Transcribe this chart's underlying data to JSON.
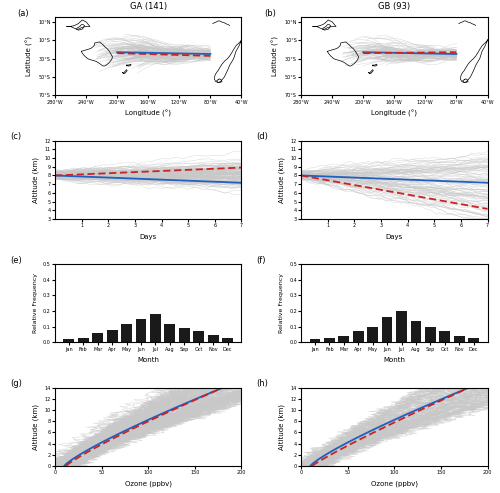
{
  "title_a": "GA (141)",
  "title_b": "GB (93)",
  "panel_labels": [
    "(a)",
    "(b)",
    "(c)",
    "(d)",
    "(e)",
    "(f)",
    "(g)",
    "(h)"
  ],
  "lon_ticks": [
    -280,
    -240,
    -200,
    -160,
    -120,
    -80,
    -40
  ],
  "lon_tick_labels": [
    "280°W",
    "240°W",
    "200°W",
    "160°W",
    "120°W",
    "80°W",
    "40°W"
  ],
  "lat_ticks": [
    10,
    -10,
    -30,
    -50,
    -70
  ],
  "lat_tick_labels": [
    "10°N",
    "10°S",
    "30°S",
    "50°S",
    "70°S"
  ],
  "days_ticks": [
    1,
    2,
    3,
    4,
    5,
    6,
    7
  ],
  "alt_ticks_c": [
    3,
    4,
    5,
    6,
    7,
    8,
    9,
    10,
    11,
    12
  ],
  "alt_ticks_d": [
    3,
    4,
    5,
    6,
    7,
    8,
    9,
    10,
    11,
    12
  ],
  "alt_ticks_g": [
    0,
    2,
    4,
    6,
    8,
    10,
    12,
    14
  ],
  "month_labels": [
    "Jan",
    "Feb",
    "Mar",
    "Apr",
    "May",
    "Jun",
    "Jul",
    "Aug",
    "Sep",
    "Oct",
    "Nov",
    "Dec"
  ],
  "freq_a": [
    0.02,
    0.03,
    0.06,
    0.08,
    0.12,
    0.15,
    0.18,
    0.12,
    0.09,
    0.07,
    0.05,
    0.03
  ],
  "freq_b": [
    0.02,
    0.03,
    0.04,
    0.07,
    0.1,
    0.16,
    0.2,
    0.14,
    0.1,
    0.07,
    0.04,
    0.03
  ],
  "light_grey": "#c8c8c8",
  "blue_color": "#2060c0",
  "red_color": "#cc2222",
  "bar_color": "#1a1a1a",
  "background": "#ffffff",
  "alt_ylabel": "Altitude (km)",
  "lon_xlabel": "Longitude (°)",
  "lat_ylabel": "Latitude (°)",
  "days_xlabel": "Days",
  "ozone_xlabel": "Ozone (ppbv)",
  "freq_ylabel": "Relative Frequency",
  "ozone_xlim": [
    0,
    200
  ],
  "ozone_ticks": [
    0,
    50,
    100,
    150,
    200
  ],
  "freq_ylim": [
    0,
    0.5
  ],
  "freq_yticks": [
    0,
    0.1,
    0.2,
    0.3,
    0.4,
    0.5
  ],
  "map_xlim": [
    -280,
    -40
  ],
  "map_ylim": [
    -70,
    15
  ]
}
